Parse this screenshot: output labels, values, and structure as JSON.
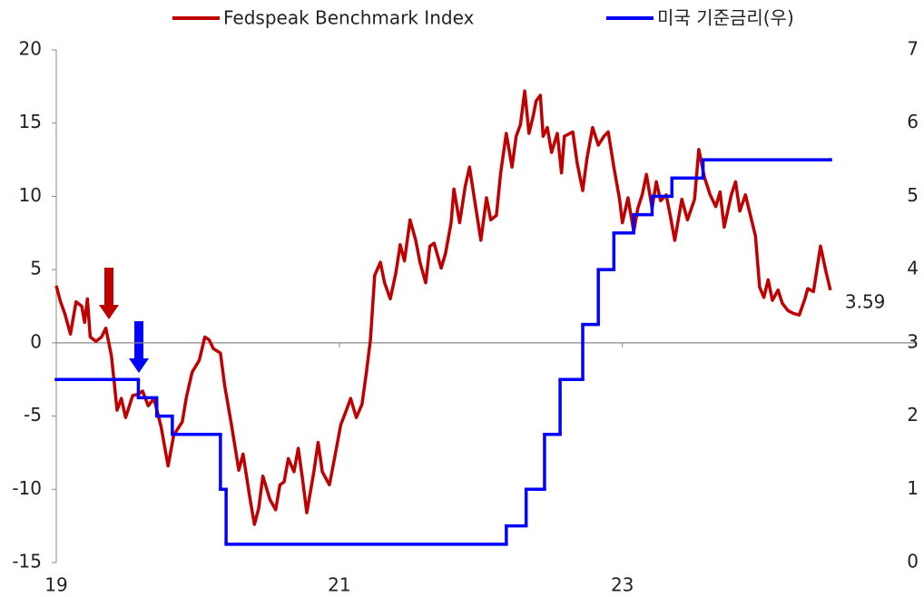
{
  "chart_data": {
    "type": "line",
    "xlim": [
      2019,
      2025.08
    ],
    "xticks": [
      {
        "value": 2019,
        "label": "19"
      },
      {
        "value": 2021,
        "label": "21"
      },
      {
        "value": 2023,
        "label": "23"
      }
    ],
    "ylim": [
      -15,
      20
    ],
    "yticks": [
      -15,
      -10,
      -5,
      0,
      5,
      10,
      15,
      20
    ],
    "y2lim": [
      0,
      7
    ],
    "y2ticks": [
      0,
      1,
      2,
      3,
      4,
      5,
      6,
      7
    ],
    "series": [
      {
        "name": "Fedspeak  Benchmark Index",
        "color": "#c00000",
        "x": [
          2019.0,
          2019.03,
          2019.06,
          2019.1,
          2019.14,
          2019.18,
          2019.2,
          2019.22,
          2019.24,
          2019.28,
          2019.32,
          2019.35,
          2019.39,
          2019.43,
          2019.46,
          2019.49,
          2019.54,
          2019.58,
          2019.61,
          2019.65,
          2019.69,
          2019.74,
          2019.79,
          2019.83,
          2019.89,
          2019.92,
          2019.96,
          2020.01,
          2020.05,
          2020.08,
          2020.11,
          2020.16,
          2020.19,
          2020.24,
          2020.29,
          2020.32,
          2020.37,
          2020.4,
          2020.43,
          2020.46,
          2020.51,
          2020.55,
          2020.58,
          2020.61,
          2020.64,
          2020.68,
          2020.71,
          2020.74,
          2020.77,
          2020.82,
          2020.85,
          2020.88,
          2020.93,
          2020.96,
          2021.01,
          2021.05,
          2021.08,
          2021.12,
          2021.16,
          2021.19,
          2021.22,
          2021.25,
          2021.29,
          2021.32,
          2021.36,
          2021.4,
          2021.43,
          2021.46,
          2021.5,
          2021.54,
          2021.57,
          2021.61,
          2021.64,
          2021.67,
          2021.72,
          2021.75,
          2021.79,
          2021.81,
          2021.85,
          2021.89,
          2021.92,
          2021.96,
          2022.0,
          2022.04,
          2022.07,
          2022.11,
          2022.14,
          2022.18,
          2022.22,
          2022.25,
          2022.28,
          2022.31,
          2022.34,
          2022.37,
          2022.39,
          2022.42,
          2022.44,
          2022.47,
          2022.5,
          2022.54,
          2022.57,
          2022.59,
          2022.65,
          2022.68,
          2022.72,
          2022.75,
          2022.79,
          2022.83,
          2022.87,
          2022.9,
          2022.94,
          2022.98,
          2023.0,
          2023.04,
          2023.08,
          2023.11,
          2023.14,
          2023.17,
          2023.21,
          2023.24,
          2023.27,
          2023.31,
          2023.34,
          2023.37,
          2023.42,
          2023.46,
          2023.51,
          2023.54,
          2023.58,
          2023.62,
          2023.66,
          2023.69,
          2023.72,
          2023.77,
          2023.8,
          2023.83,
          2023.87,
          2023.9,
          2023.94,
          2023.97,
          2024.0,
          2024.03,
          2024.06,
          2024.1,
          2024.13,
          2024.17,
          2024.21,
          2024.25,
          2024.29,
          2024.31,
          2024.35,
          2024.4,
          2024.44,
          2024.47
        ],
        "values": [
          3.9,
          2.8,
          2.0,
          0.6,
          2.8,
          2.5,
          1.4,
          3.0,
          0.4,
          0.1,
          0.4,
          1.0,
          -0.9,
          -4.6,
          -3.8,
          -5.1,
          -3.6,
          -3.5,
          -3.3,
          -4.3,
          -3.8,
          -5.7,
          -8.4,
          -6.3,
          -5.4,
          -3.7,
          -2.0,
          -1.2,
          0.4,
          0.2,
          -0.4,
          -0.7,
          -2.9,
          -5.7,
          -8.7,
          -7.6,
          -10.7,
          -12.4,
          -11.3,
          -9.1,
          -10.7,
          -11.4,
          -9.7,
          -9.5,
          -7.9,
          -8.8,
          -7.2,
          -9.3,
          -11.6,
          -8.8,
          -6.8,
          -8.8,
          -9.7,
          -8.2,
          -5.6,
          -4.6,
          -3.8,
          -5.1,
          -4.2,
          -2.1,
          0.2,
          4.6,
          5.5,
          4.1,
          3.0,
          4.8,
          6.7,
          5.6,
          8.4,
          7.0,
          5.5,
          4.1,
          6.6,
          6.8,
          5.1,
          6.1,
          8.2,
          10.5,
          8.2,
          10.7,
          12.0,
          9.5,
          7.0,
          9.9,
          8.4,
          8.7,
          11.6,
          14.3,
          12.0,
          14.1,
          14.9,
          17.2,
          14.3,
          15.5,
          16.5,
          16.9,
          14.1,
          14.7,
          13.0,
          14.3,
          11.6,
          14.1,
          14.4,
          12.3,
          10.4,
          12.6,
          14.7,
          13.5,
          14.1,
          14.4,
          12.0,
          9.8,
          8.2,
          9.9,
          7.6,
          9.2,
          10.1,
          11.5,
          9.2,
          11.0,
          9.7,
          10.1,
          8.6,
          7.0,
          9.8,
          8.4,
          9.8,
          13.2,
          11.3,
          10.1,
          9.3,
          10.3,
          7.9,
          10.1,
          11.0,
          9.0,
          10.1,
          8.9,
          7.3,
          3.8,
          3.1,
          4.3,
          2.9,
          3.6,
          2.7,
          2.2,
          2.0,
          1.9,
          3.0,
          3.7,
          3.5,
          6.6,
          4.8,
          3.59
        ]
      },
      {
        "name": "미국 기준금리(우)",
        "color": "#0000ff",
        "axis": "y2",
        "step": "post",
        "x": [
          2019.0,
          2019.58,
          2019.71,
          2019.82,
          2020.16,
          2020.2,
          2022.18,
          2022.32,
          2022.45,
          2022.56,
          2022.72,
          2022.83,
          2022.94,
          2023.08,
          2023.21,
          2023.35,
          2023.57,
          2024.47
        ],
        "values": [
          2.5,
          2.25,
          2.0,
          1.75,
          1.0,
          0.25,
          0.5,
          1.0,
          1.75,
          2.5,
          3.25,
          4.0,
          4.5,
          4.75,
          5.0,
          5.25,
          5.5,
          5.5
        ]
      }
    ]
  }
}
